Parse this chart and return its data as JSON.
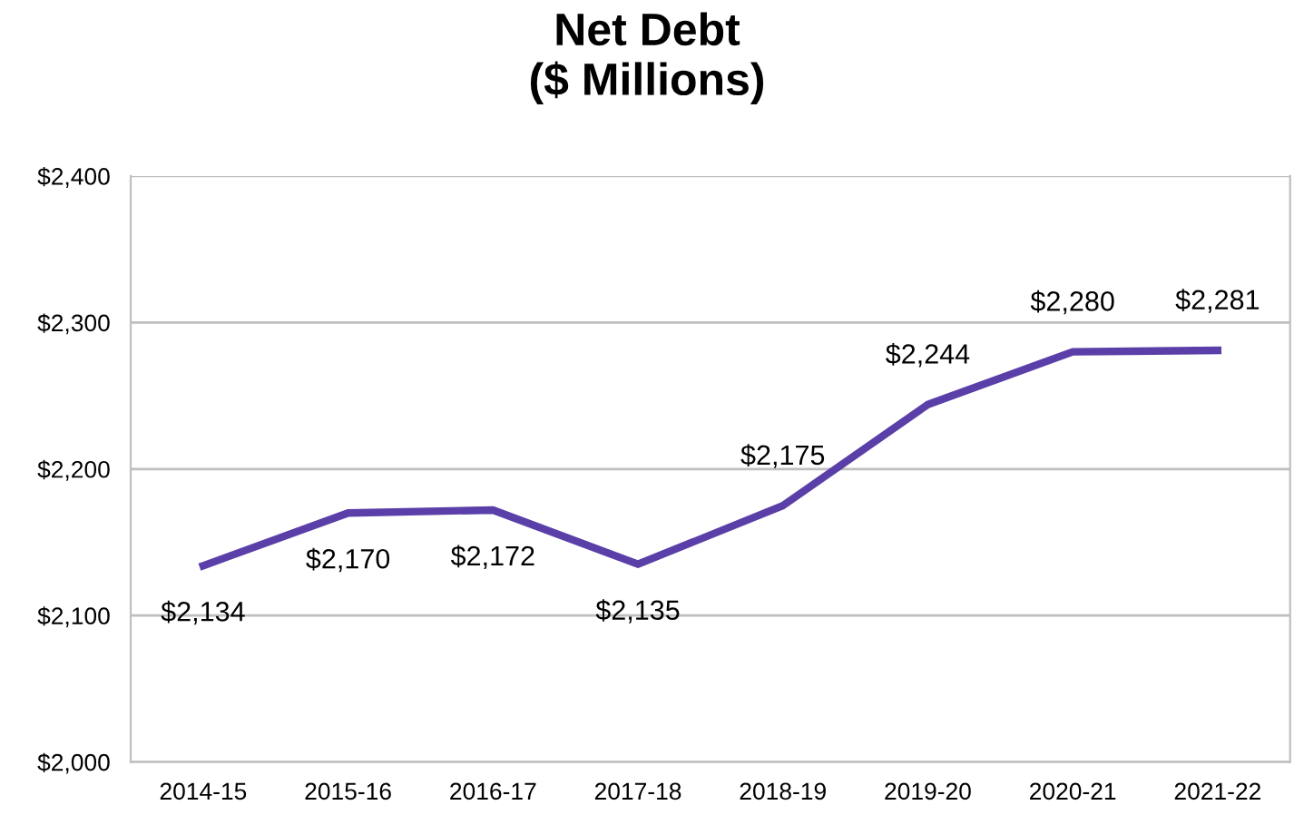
{
  "chart_data": {
    "type": "line",
    "title": "Net Debt\n($ Millions)",
    "categories": [
      "2014-15",
      "2015-16",
      "2016-17",
      "2017-18",
      "2018-19",
      "2019-20",
      "2020-21",
      "2021-22"
    ],
    "series": [
      {
        "color": "#5b3fa8",
        "values": [
          2134,
          2170,
          2172,
          2135,
          2175,
          2244,
          2280,
          2281
        ],
        "value_labels": [
          "$2,134",
          "$2,170",
          "$2,172",
          "$2,135",
          "$2,175",
          "$2,244",
          "$2,280",
          "$2,281"
        ]
      }
    ],
    "ylim": [
      2000,
      2400
    ],
    "yticks": [
      {
        "value": 2000,
        "label": "$2,000"
      },
      {
        "value": 2100,
        "label": "$2,100"
      },
      {
        "value": 2200,
        "label": "$2,200"
      },
      {
        "value": 2300,
        "label": "$2,300"
      },
      {
        "value": 2400,
        "label": "$2,400"
      }
    ],
    "grid": "y",
    "marker": "none",
    "line_style": "solid"
  }
}
